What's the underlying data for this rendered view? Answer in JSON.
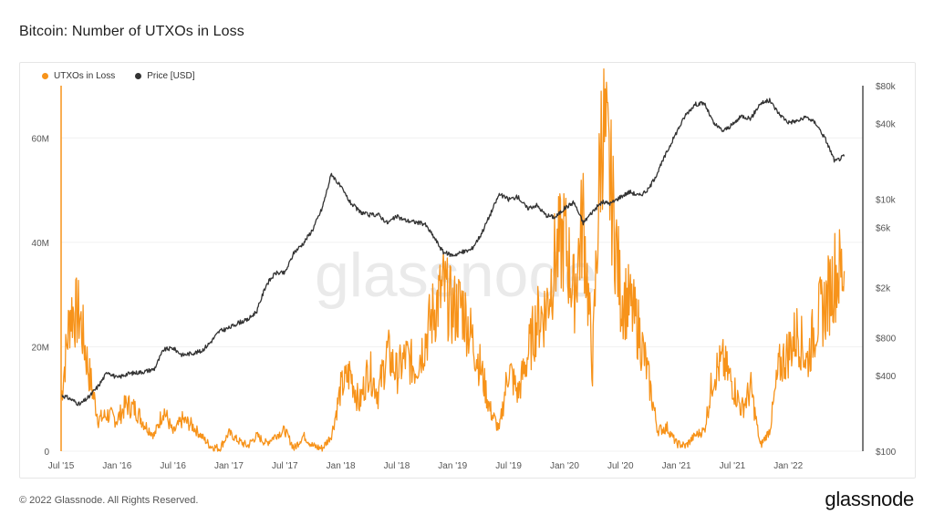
{
  "header": {
    "title": "Bitcoin: Number of UTXOs in Loss"
  },
  "footer": {
    "copyright": "© 2022 Glassnode. All Rights Reserved.",
    "brand": "glassnode"
  },
  "watermark": "glassnode",
  "legend": [
    {
      "label": "UTXOs in Loss",
      "color": "#f7931a"
    },
    {
      "label": "Price [USD]",
      "color": "#333333"
    }
  ],
  "chart_data": {
    "type": "line",
    "title": "Bitcoin: Number of UTXOs in Loss",
    "x_ticks": [
      "Jul '15",
      "Jan '16",
      "Jul '16",
      "Jan '17",
      "Jul '17",
      "Jan '18",
      "Jul '18",
      "Jan '19",
      "Jul '19",
      "Jan '20",
      "Jul '20",
      "Jan '21",
      "Jul '21",
      "Jan '22"
    ],
    "y_left_ticks": [
      "0",
      "20M",
      "40M",
      "60M"
    ],
    "y_left_range": [
      0,
      70000000
    ],
    "y_right_ticks": [
      "$100",
      "$400",
      "$800",
      "$2k",
      "$6k",
      "$10k",
      "$40k",
      "$80k"
    ],
    "y_right_scale": "log",
    "y_right_range": [
      100,
      80000
    ],
    "legend_position": "top-left",
    "series": [
      {
        "name": "UTXOs in Loss",
        "axis": "left",
        "color": "#f7931a",
        "x": [
          "2015-07",
          "2015-08",
          "2015-09",
          "2015-10",
          "2015-11",
          "2015-12",
          "2016-01",
          "2016-02",
          "2016-03",
          "2016-04",
          "2016-05",
          "2016-06",
          "2016-07",
          "2016-08",
          "2016-09",
          "2016-10",
          "2016-11",
          "2016-12",
          "2017-01",
          "2017-02",
          "2017-03",
          "2017-04",
          "2017-05",
          "2017-06",
          "2017-07",
          "2017-08",
          "2017-09",
          "2017-10",
          "2017-11",
          "2017-12",
          "2018-01",
          "2018-02",
          "2018-03",
          "2018-04",
          "2018-05",
          "2018-06",
          "2018-07",
          "2018-08",
          "2018-09",
          "2018-10",
          "2018-11",
          "2018-12",
          "2019-01",
          "2019-02",
          "2019-03",
          "2019-04",
          "2019-05",
          "2019-06",
          "2019-07",
          "2019-08",
          "2019-09",
          "2019-10",
          "2019-11",
          "2019-12",
          "2020-01",
          "2020-02",
          "2020-03",
          "2020-04",
          "2020-05",
          "2020-06",
          "2020-07",
          "2020-08",
          "2020-09",
          "2020-10",
          "2020-11",
          "2020-12",
          "2021-01",
          "2021-02",
          "2021-03",
          "2021-04",
          "2021-05",
          "2021-06",
          "2021-07",
          "2021-08",
          "2021-09",
          "2021-10",
          "2021-11",
          "2021-12",
          "2022-01",
          "2022-02",
          "2022-03",
          "2022-04",
          "2022-05",
          "2022-06",
          "2022-07"
        ],
        "values": [
          10000000,
          27000000,
          26000000,
          15000000,
          6000000,
          7000000,
          6000000,
          9000000,
          8000000,
          5000000,
          3000000,
          8000000,
          3500000,
          6000000,
          5000000,
          3000000,
          1000000,
          500000,
          3500000,
          2000000,
          1000000,
          3000000,
          1500000,
          3000000,
          4000000,
          500000,
          3000000,
          1000000,
          500000,
          3000000,
          12000000,
          15000000,
          9000000,
          16000000,
          11000000,
          19000000,
          15000000,
          18000000,
          16000000,
          21000000,
          27000000,
          31000000,
          27000000,
          28000000,
          22000000,
          16000000,
          8000000,
          4000000,
          16000000,
          11000000,
          18000000,
          25000000,
          27000000,
          37000000,
          41000000,
          30000000,
          45000000,
          16000000,
          64000000,
          50000000,
          30000000,
          28000000,
          23000000,
          14000000,
          4000000,
          4500000,
          1500000,
          1000000,
          3000000,
          4000000,
          15000000,
          17000000,
          13000000,
          8000000,
          12000000,
          1000000,
          4000000,
          16000000,
          19000000,
          23000000,
          17000000,
          25000000,
          28000000,
          34000000,
          34500000
        ]
      },
      {
        "name": "Price [USD]",
        "axis": "right",
        "color": "#333333",
        "x": [
          "2015-07",
          "2015-08",
          "2015-09",
          "2015-10",
          "2015-11",
          "2015-12",
          "2016-01",
          "2016-02",
          "2016-03",
          "2016-04",
          "2016-05",
          "2016-06",
          "2016-07",
          "2016-08",
          "2016-09",
          "2016-10",
          "2016-11",
          "2016-12",
          "2017-01",
          "2017-02",
          "2017-03",
          "2017-04",
          "2017-05",
          "2017-06",
          "2017-07",
          "2017-08",
          "2017-09",
          "2017-10",
          "2017-11",
          "2017-12",
          "2018-01",
          "2018-02",
          "2018-03",
          "2018-04",
          "2018-05",
          "2018-06",
          "2018-07",
          "2018-08",
          "2018-09",
          "2018-10",
          "2018-11",
          "2018-12",
          "2019-01",
          "2019-02",
          "2019-03",
          "2019-04",
          "2019-05",
          "2019-06",
          "2019-07",
          "2019-08",
          "2019-09",
          "2019-10",
          "2019-11",
          "2019-12",
          "2020-01",
          "2020-02",
          "2020-03",
          "2020-04",
          "2020-05",
          "2020-06",
          "2020-07",
          "2020-08",
          "2020-09",
          "2020-10",
          "2020-11",
          "2020-12",
          "2021-01",
          "2021-02",
          "2021-03",
          "2021-04",
          "2021-05",
          "2021-06",
          "2021-07",
          "2021-08",
          "2021-09",
          "2021-10",
          "2021-11",
          "2021-12",
          "2022-01",
          "2022-02",
          "2022-03",
          "2022-04",
          "2022-05",
          "2022-06",
          "2022-07"
        ],
        "values": [
          280,
          260,
          235,
          270,
          330,
          430,
          380,
          410,
          420,
          430,
          450,
          640,
          660,
          580,
          600,
          620,
          730,
          900,
          950,
          1050,
          1100,
          1300,
          2100,
          2600,
          2600,
          3800,
          4500,
          5800,
          8500,
          16000,
          12500,
          9500,
          8000,
          7500,
          7600,
          6500,
          7300,
          6800,
          6600,
          6400,
          5000,
          3800,
          3600,
          3800,
          4000,
          5200,
          7500,
          11000,
          10000,
          10500,
          8500,
          9000,
          7500,
          7200,
          8500,
          9500,
          6500,
          8000,
          9500,
          9300,
          10500,
          11500,
          10700,
          12000,
          16500,
          24000,
          34000,
          47000,
          57000,
          58000,
          40000,
          35000,
          39000,
          46000,
          44000,
          58000,
          61000,
          48000,
          41000,
          42000,
          45000,
          40000,
          30000,
          20000,
          22000
        ]
      }
    ]
  }
}
